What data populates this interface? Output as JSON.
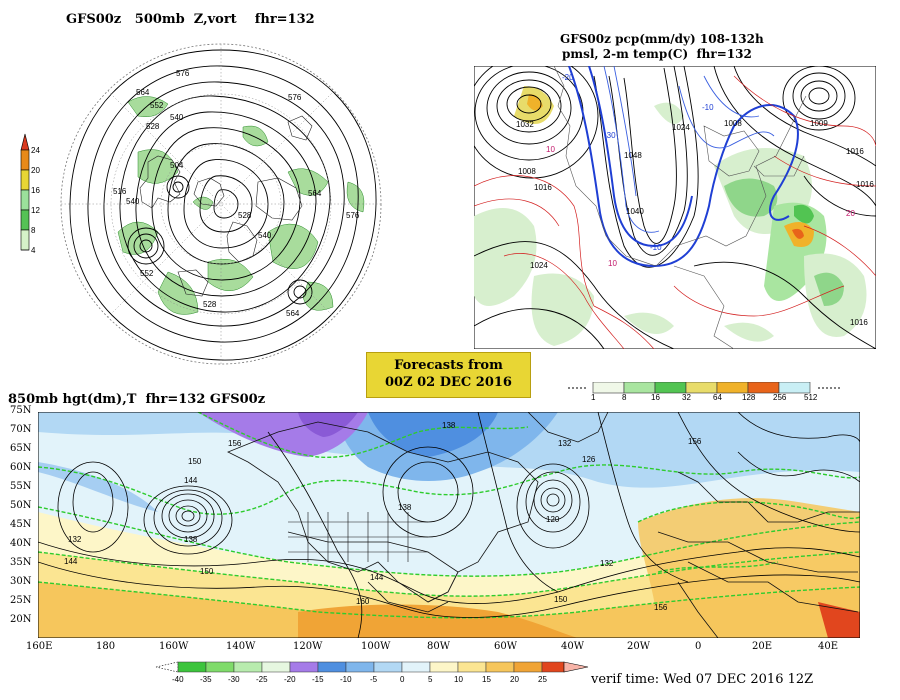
{
  "panel_500mb": {
    "title": "GFS00z   500mb  Z,vort    fhr=132",
    "colorbar_ticks": [
      "24",
      "20",
      "16",
      "12",
      "8",
      "4"
    ],
    "colorbar_colors": [
      "#1f8a1f",
      "#55c255",
      "#9be09b",
      "#d6f2c9",
      "#e8d634",
      "#e88a1a",
      "#d9381e"
    ],
    "contour_labels": [
      "576",
      "576",
      "564",
      "552",
      "540",
      "528",
      "516",
      "504",
      "564",
      "540",
      "576",
      "540",
      "528",
      "528",
      "564",
      "552"
    ]
  },
  "panel_precip": {
    "title_line1": "GFS00z pcp(mm/dy) 108-132h",
    "title_line2": "pmsl, 2-m temp(C)  fhr=132",
    "pressure_labels": [
      "1032",
      "1008",
      "1016",
      "1024",
      "1040",
      "1048",
      "1024",
      "1008",
      "1016",
      "1016",
      "1016",
      "1009"
    ],
    "temp_labels": [
      "-20",
      "-30",
      "-10",
      "10",
      "10",
      "20",
      "-10"
    ],
    "colorbar_ticks": [
      "1",
      "8",
      "16",
      "32",
      "64",
      "128",
      "256",
      "512"
    ],
    "colorbar_colors": [
      "#f0f8e8",
      "#a9e5a0",
      "#52c452",
      "#e8dc6a",
      "#f0b22a",
      "#e8641a",
      "#c9eff5",
      "#eef9fc"
    ]
  },
  "forecast_box": {
    "line1": "Forecasts from",
    "line2": "00Z 02 DEC 2016"
  },
  "panel_850mb": {
    "title": "850mb hgt(dm),T  fhr=132 GFS00z",
    "lat_labels": [
      "75N",
      "70N",
      "65N",
      "60N",
      "55N",
      "50N",
      "45N",
      "40N",
      "35N",
      "30N",
      "25N",
      "20N"
    ],
    "lon_labels": [
      "160E",
      "180",
      "160W",
      "140W",
      "120W",
      "100W",
      "80W",
      "60W",
      "40W",
      "20W",
      "0",
      "20E",
      "40E"
    ],
    "height_labels": [
      "156",
      "138",
      "132",
      "150",
      "144",
      "126",
      "138",
      "120",
      "138",
      "144",
      "132",
      "150",
      "156",
      "150",
      "144",
      "156",
      "132",
      "160"
    ],
    "colorbar_ticks": [
      "-40",
      "-35",
      "-30",
      "-25",
      "-20",
      "-15",
      "-10",
      "-5",
      "0",
      "5",
      "10",
      "15",
      "20",
      "25"
    ],
    "colorbar_colors": [
      "#3cc43c",
      "#7fdb6a",
      "#b8ecae",
      "#e6f7e0",
      "#a57be8",
      "#4f8fe0",
      "#7fb6ec",
      "#b2d8f4",
      "#e2f3fa",
      "#fdf6c8",
      "#fbe592",
      "#f6c65c",
      "#f0a436",
      "#e1461e"
    ]
  },
  "verif": "verif time: Wed 07 DEC 2016 12Z"
}
